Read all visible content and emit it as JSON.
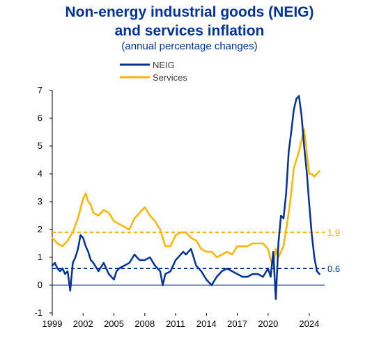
{
  "chart_data": {
    "type": "line",
    "title_line1": "Non-energy industrial goods (NEIG)",
    "title_line2": "and services inflation",
    "subtitle": "(annual percentage changes)",
    "xlabel": "",
    "ylabel": "",
    "xlim": [
      1999,
      2025.5
    ],
    "ylim": [
      -1,
      7
    ],
    "yticks": [
      "-1",
      "0",
      "1",
      "2",
      "3",
      "4",
      "5",
      "6",
      "7"
    ],
    "xticks": [
      "1999",
      "2002",
      "2005",
      "2008",
      "2011",
      "2014",
      "2017",
      "2020",
      "2024"
    ],
    "legend_position": "top-center",
    "series": [
      {
        "name": "NEIG",
        "color": "#003299",
        "x": [
          1999.0,
          1999.25,
          1999.5,
          1999.75,
          2000.0,
          2000.25,
          2000.5,
          2000.75,
          2001.0,
          2001.25,
          2001.5,
          2001.75,
          2002.0,
          2002.25,
          2002.5,
          2002.75,
          2003.0,
          2003.5,
          2004.0,
          2004.25,
          2004.5,
          2005.0,
          2005.25,
          2005.5,
          2006.0,
          2006.5,
          2007.0,
          2007.5,
          2008.0,
          2008.5,
          2009.0,
          2009.5,
          2009.75,
          2010.0,
          2010.5,
          2011.0,
          2011.5,
          2011.75,
          2012.0,
          2012.5,
          2013.0,
          2013.5,
          2014.0,
          2014.5,
          2015.0,
          2015.5,
          2016.0,
          2016.5,
          2017.0,
          2017.5,
          2018.0,
          2018.5,
          2019.0,
          2019.5,
          2020.0,
          2020.25,
          2020.5,
          2020.75,
          2021.0,
          2021.25,
          2021.5,
          2021.75,
          2022.0,
          2022.25,
          2022.5,
          2022.75,
          2023.0,
          2023.25,
          2023.5,
          2023.75,
          2024.0,
          2024.25,
          2024.5,
          2024.75,
          2025.0
        ],
        "values": [
          0.7,
          0.8,
          0.6,
          0.5,
          0.6,
          0.4,
          0.5,
          -0.2,
          0.8,
          1.0,
          1.3,
          1.8,
          1.7,
          1.4,
          1.2,
          0.9,
          0.8,
          0.5,
          0.8,
          0.6,
          0.4,
          0.2,
          0.5,
          0.6,
          0.7,
          0.8,
          1.1,
          0.9,
          0.9,
          1.0,
          0.7,
          0.5,
          0.0,
          0.4,
          0.5,
          0.9,
          1.1,
          1.2,
          1.1,
          1.3,
          0.7,
          0.5,
          0.2,
          0.0,
          0.3,
          0.5,
          0.6,
          0.5,
          0.4,
          0.3,
          0.3,
          0.4,
          0.4,
          0.3,
          0.6,
          0.3,
          1.2,
          -0.5,
          1.5,
          2.5,
          2.4,
          3.3,
          4.8,
          5.5,
          6.3,
          6.7,
          6.8,
          6.1,
          5.0,
          4.1,
          2.9,
          1.8,
          1.0,
          0.5,
          0.4
        ]
      },
      {
        "name": "Services",
        "color": "#FFB400",
        "x": [
          1999.0,
          1999.5,
          2000.0,
          2000.5,
          2001.0,
          2001.5,
          2002.0,
          2002.25,
          2002.5,
          2002.75,
          2003.0,
          2003.5,
          2004.0,
          2004.5,
          2005.0,
          2005.5,
          2006.0,
          2006.5,
          2007.0,
          2007.5,
          2008.0,
          2008.5,
          2009.0,
          2009.5,
          2010.0,
          2010.5,
          2011.0,
          2011.5,
          2012.0,
          2012.5,
          2013.0,
          2013.5,
          2014.0,
          2014.5,
          2015.0,
          2015.5,
          2016.0,
          2016.5,
          2017.0,
          2017.5,
          2018.0,
          2018.5,
          2019.0,
          2019.5,
          2020.0,
          2020.25,
          2020.5,
          2020.75,
          2021.0,
          2021.5,
          2022.0,
          2022.25,
          2022.5,
          2022.75,
          2023.0,
          2023.25,
          2023.5,
          2023.75,
          2024.0,
          2024.25,
          2024.5,
          2024.75,
          2025.0
        ],
        "values": [
          1.7,
          1.5,
          1.4,
          1.6,
          1.9,
          2.4,
          3.1,
          3.3,
          3.0,
          2.9,
          2.6,
          2.5,
          2.7,
          2.6,
          2.3,
          2.2,
          2.1,
          2.0,
          2.4,
          2.6,
          2.8,
          2.5,
          2.3,
          2.0,
          1.4,
          1.4,
          1.8,
          1.9,
          1.9,
          1.7,
          1.6,
          1.3,
          1.2,
          1.2,
          1.0,
          1.1,
          1.2,
          1.1,
          1.4,
          1.4,
          1.4,
          1.5,
          1.5,
          1.5,
          1.3,
          0.9,
          0.7,
          1.3,
          1.0,
          1.4,
          2.6,
          3.3,
          4.2,
          4.5,
          4.8,
          5.2,
          5.6,
          4.8,
          4.0,
          4.0,
          3.9,
          4.0,
          4.1
        ]
      }
    ],
    "reference_lines": [
      {
        "value": 1.9,
        "label": "1.9",
        "color": "#FFB400"
      },
      {
        "value": 0.6,
        "label": "0.6",
        "color": "#003299"
      }
    ]
  }
}
